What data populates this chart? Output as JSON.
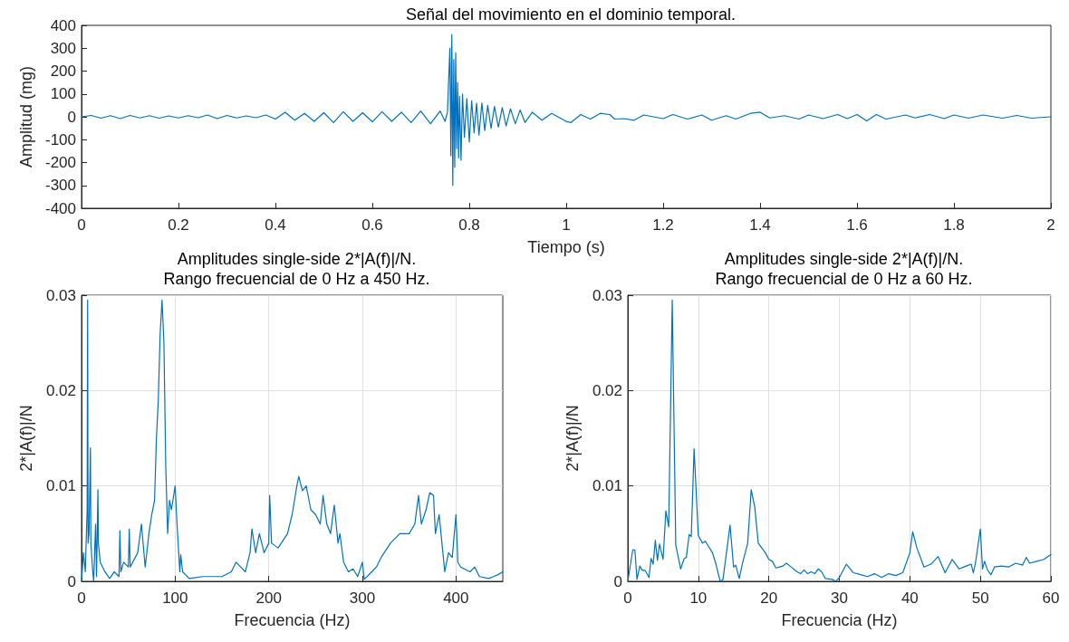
{
  "chart_data": [
    {
      "type": "line",
      "title": "Señal del movimiento en el dominio temporal.",
      "xlabel": "Tiempo (s)",
      "ylabel": "Amplitud (mg)",
      "xlim": [
        0,
        2
      ],
      "xticks": [
        0,
        0.2,
        0.4,
        0.6,
        0.8,
        1,
        1.2,
        1.4,
        1.6,
        1.8,
        2
      ],
      "ylim": [
        -400,
        400
      ],
      "yticks": [
        -400,
        -300,
        -200,
        -100,
        0,
        100,
        200,
        300,
        400
      ],
      "grid": false,
      "marker": "none",
      "line_style": "solid",
      "series": [
        {
          "color": "#0072bd",
          "x": [
            0,
            0.02,
            0.04,
            0.06,
            0.08,
            0.1,
            0.12,
            0.14,
            0.16,
            0.18,
            0.2,
            0.22,
            0.24,
            0.26,
            0.28,
            0.3,
            0.32,
            0.34,
            0.36,
            0.38,
            0.4,
            0.42,
            0.44,
            0.46,
            0.48,
            0.5,
            0.52,
            0.54,
            0.56,
            0.58,
            0.6,
            0.62,
            0.64,
            0.66,
            0.68,
            0.7,
            0.72,
            0.74,
            0.75,
            0.755,
            0.76,
            0.762,
            0.764,
            0.766,
            0.768,
            0.77,
            0.772,
            0.774,
            0.776,
            0.778,
            0.78,
            0.783,
            0.786,
            0.79,
            0.795,
            0.8,
            0.805,
            0.81,
            0.815,
            0.82,
            0.826,
            0.832,
            0.838,
            0.845,
            0.852,
            0.86,
            0.868,
            0.876,
            0.885,
            0.895,
            0.905,
            0.915,
            0.93,
            0.95,
            0.97,
            1,
            1.01,
            1.03,
            1.05,
            1.07,
            1.09,
            1.1,
            1.12,
            1.14,
            1.16,
            1.2,
            1.22,
            1.25,
            1.28,
            1.3,
            1.33,
            1.35,
            1.38,
            1.4,
            1.42,
            1.45,
            1.48,
            1.5,
            1.53,
            1.56,
            1.58,
            1.6,
            1.62,
            1.64,
            1.66,
            1.7,
            1.72,
            1.75,
            1.78,
            1.8,
            1.83,
            1.86,
            1.9,
            1.93,
            1.96,
            2
          ],
          "values": [
            0,
            6,
            -6,
            5,
            -8,
            6,
            -5,
            5,
            -6,
            4,
            -5,
            5,
            -4,
            8,
            -8,
            6,
            -5,
            4,
            -4,
            8,
            -10,
            20,
            -15,
            15,
            -20,
            18,
            -25,
            22,
            -20,
            18,
            -22,
            22,
            -20,
            20,
            -25,
            25,
            -30,
            25,
            -20,
            20,
            300,
            -170,
            360,
            -300,
            250,
            -220,
            280,
            -140,
            150,
            -180,
            90,
            -190,
            100,
            -90,
            80,
            -110,
            70,
            -70,
            60,
            -80,
            60,
            -60,
            50,
            -50,
            45,
            -45,
            40,
            -40,
            35,
            -30,
            30,
            -25,
            20,
            -15,
            15,
            -20,
            -25,
            10,
            -10,
            15,
            10,
            -10,
            -8,
            -15,
            8,
            -8,
            10,
            -10,
            8,
            -15,
            5,
            -10,
            15,
            20,
            -5,
            5,
            -10,
            8,
            -8,
            10,
            -8,
            10,
            -18,
            10,
            -10,
            8,
            -5,
            10,
            -8,
            8,
            -6,
            8,
            -6,
            6,
            -6,
            0
          ]
        }
      ]
    },
    {
      "type": "line",
      "title": "Amplitudes single-side 2*|A(f)|/N.",
      "subtitle": "Rango frecuencial de 0 Hz a 450 Hz.",
      "xlabel": "Frecuencia (Hz)",
      "ylabel": "2*|A(f)|/N",
      "xlim": [
        0,
        450
      ],
      "xticks": [
        0,
        100,
        200,
        300,
        400
      ],
      "ylim": [
        0,
        0.03
      ],
      "yticks": [
        0,
        0.01,
        0.02,
        0.03
      ],
      "grid": true,
      "marker": "none",
      "line_style": "solid",
      "series": [
        {
          "color": "#0072bd",
          "x": [
            0,
            2,
            4,
            6,
            6.5,
            7,
            8,
            9.5,
            10,
            12,
            13,
            15,
            16,
            17.5,
            18,
            20,
            25,
            30,
            35,
            40,
            41,
            42,
            45,
            50,
            51,
            52,
            60,
            64,
            68,
            72,
            75,
            78,
            80,
            82,
            84,
            86,
            88,
            90,
            92,
            94,
            96,
            100,
            102,
            105,
            106,
            108,
            115,
            130,
            150,
            160,
            165,
            170,
            175,
            180,
            182,
            186,
            190,
            195,
            200,
            201,
            203,
            210,
            220,
            225,
            230,
            232,
            236,
            240,
            245,
            250,
            255,
            258,
            262,
            266,
            270,
            274,
            276,
            280,
            285,
            290,
            295,
            300,
            302,
            310,
            315,
            320,
            330,
            340,
            345,
            350,
            356,
            360,
            363,
            368,
            372,
            376,
            378,
            382,
            385,
            388,
            392,
            396,
            400,
            402,
            405,
            415,
            420,
            425,
            435,
            440,
            445,
            450
          ],
          "values": [
            0,
            0.003,
            0.001,
            0.0075,
            0.0295,
            0.004,
            0.005,
            0.014,
            0.004,
            0.001,
            0,
            0.006,
            0.0005,
            0.0096,
            0.004,
            0.002,
            0.001,
            0.0003,
            0.001,
            0.0005,
            0.0053,
            0.001,
            0.002,
            0.0015,
            0.0055,
            0.0015,
            0.003,
            0.006,
            0.0015,
            0.005,
            0.007,
            0.0085,
            0.015,
            0.019,
            0.026,
            0.0295,
            0.025,
            0.012,
            0.005,
            0.0085,
            0.0075,
            0.01,
            0.006,
            0.001,
            0.0028,
            0.001,
            0.0003,
            0.0005,
            0.0005,
            0.001,
            0.002,
            0.0015,
            0.001,
            0.003,
            0.0055,
            0.003,
            0.005,
            0.003,
            0.004,
            0.009,
            0.004,
            0.0035,
            0.005,
            0.007,
            0.01,
            0.011,
            0.0095,
            0.01,
            0.0075,
            0.007,
            0.006,
            0.009,
            0.006,
            0.005,
            0.008,
            0.004,
            0.005,
            0.002,
            0.001,
            0.0013,
            0.0005,
            0.002,
            0.0002,
            0.001,
            0.0015,
            0.0025,
            0.004,
            0.005,
            0.005,
            0.005,
            0.006,
            0.009,
            0.006,
            0.0075,
            0.0093,
            0.009,
            0.005,
            0.007,
            0.004,
            0.001,
            0.003,
            0.0025,
            0.007,
            0.002,
            0.0015,
            0.001,
            0.0015,
            0.0005,
            0.0003,
            0.0005,
            0.0007,
            0.001
          ]
        }
      ]
    },
    {
      "type": "line",
      "title": "Amplitudes single-side 2*|A(f)|/N.",
      "subtitle": "Rango frecuencial de 0 Hz a 60 Hz.",
      "xlabel": "Frecuencia (Hz)",
      "ylabel": "2*|A(f)|/N",
      "xlim": [
        0,
        60
      ],
      "xticks": [
        0,
        10,
        20,
        30,
        40,
        50,
        60
      ],
      "ylim": [
        0,
        0.03
      ],
      "yticks": [
        0,
        0.01,
        0.02,
        0.03
      ],
      "grid": true,
      "marker": "none",
      "line_style": "solid",
      "series": [
        {
          "color": "#0072bd",
          "x": [
            0,
            0.7,
            1,
            1.3,
            1.7,
            2,
            2.5,
            3,
            3.3,
            3.6,
            3.9,
            4.2,
            4.5,
            5,
            5.4,
            5.8,
            6.3,
            6.8,
            7.5,
            8,
            8.3,
            8.7,
            9,
            9.4,
            10,
            10.6,
            11,
            12,
            12.5,
            13.1,
            13.5,
            14.5,
            15,
            15.3,
            15.8,
            16.3,
            17,
            17.5,
            18,
            18.5,
            19.5,
            20,
            20.5,
            21,
            22,
            22.5,
            23,
            24,
            24.5,
            25,
            25.5,
            26,
            26.5,
            27,
            27.5,
            28,
            29,
            29.5,
            30,
            31,
            32,
            33,
            34,
            35,
            36,
            37,
            38,
            39,
            40,
            40.4,
            41,
            42,
            43,
            44,
            45,
            46,
            47,
            48,
            48.7,
            49,
            49.3,
            50,
            50.3,
            50.6,
            51,
            51.5,
            52,
            53,
            54,
            55,
            56,
            56.5,
            57,
            58,
            59,
            60
          ],
          "values": [
            0,
            0.0033,
            0.0033,
            0.0002,
            0.0016,
            0.0012,
            0.0011,
            0.0004,
            0.0024,
            0.0018,
            0.0043,
            0.0022,
            0.0039,
            0.0023,
            0.0074,
            0.0057,
            0.0295,
            0.0038,
            0.0013,
            0.0024,
            0.0025,
            0.0049,
            0.0047,
            0.0139,
            0.0048,
            0.004,
            0.0042,
            0.003,
            0.0018,
            0,
            0.0002,
            0.0059,
            0.0015,
            0.0017,
            0.0003,
            0.002,
            0.004,
            0.0096,
            0.0078,
            0.004,
            0.003,
            0.0023,
            0.0021,
            0.0014,
            0.0016,
            0.0019,
            0.0016,
            0.001,
            0.0008,
            0.0012,
            0.0008,
            0.001,
            0.0008,
            0.0013,
            0.001,
            0.0003,
            0.0002,
            0,
            0.0004,
            0.0018,
            0.0009,
            0.0007,
            0.0005,
            0.0008,
            0.0004,
            0.0008,
            0.0006,
            0.0009,
            0.003,
            0.0052,
            0.0035,
            0.0015,
            0.0018,
            0.0026,
            0.0009,
            0.0023,
            0.0013,
            0.0016,
            0.0018,
            0.0009,
            0.0019,
            0.0055,
            0.0013,
            0.0021,
            0.0012,
            0.0007,
            0.0015,
            0.0016,
            0.0015,
            0.0019,
            0.0017,
            0.0025,
            0.0019,
            0.0021,
            0.0023,
            0.0028
          ]
        }
      ]
    }
  ]
}
